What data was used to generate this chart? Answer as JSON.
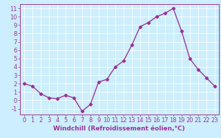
{
  "x": [
    0,
    1,
    2,
    3,
    4,
    5,
    6,
    7,
    8,
    9,
    10,
    11,
    12,
    13,
    14,
    15,
    16,
    17,
    18,
    19,
    20,
    21,
    22,
    23
  ],
  "y": [
    2.0,
    1.7,
    0.8,
    0.3,
    0.2,
    0.6,
    0.3,
    -1.3,
    -0.5,
    2.2,
    2.5,
    4.0,
    4.7,
    6.6,
    8.8,
    9.3,
    10.0,
    10.4,
    11.0,
    8.3,
    5.0,
    3.7,
    2.7,
    1.7
  ],
  "line_color": "#993399",
  "marker": "D",
  "marker_size": 2.2,
  "bg_color": "#cceeff",
  "grid_color": "#ffffff",
  "xlabel": "Windchill (Refroidissement éolien,°C)",
  "xlim": [
    -0.5,
    23.5
  ],
  "ylim": [
    -1.7,
    11.5
  ],
  "yticks": [
    -1,
    0,
    1,
    2,
    3,
    4,
    5,
    6,
    7,
    8,
    9,
    10,
    11
  ],
  "xticks": [
    0,
    1,
    2,
    3,
    4,
    5,
    6,
    7,
    8,
    9,
    10,
    11,
    12,
    13,
    14,
    15,
    16,
    17,
    18,
    19,
    20,
    21,
    22,
    23
  ],
  "tick_color": "#993399",
  "label_color": "#993399",
  "xlabel_fontsize": 6.5,
  "tick_fontsize": 6.0,
  "linewidth": 1.0,
  "spine_color": "#993399",
  "bottom_bg": "#993399"
}
